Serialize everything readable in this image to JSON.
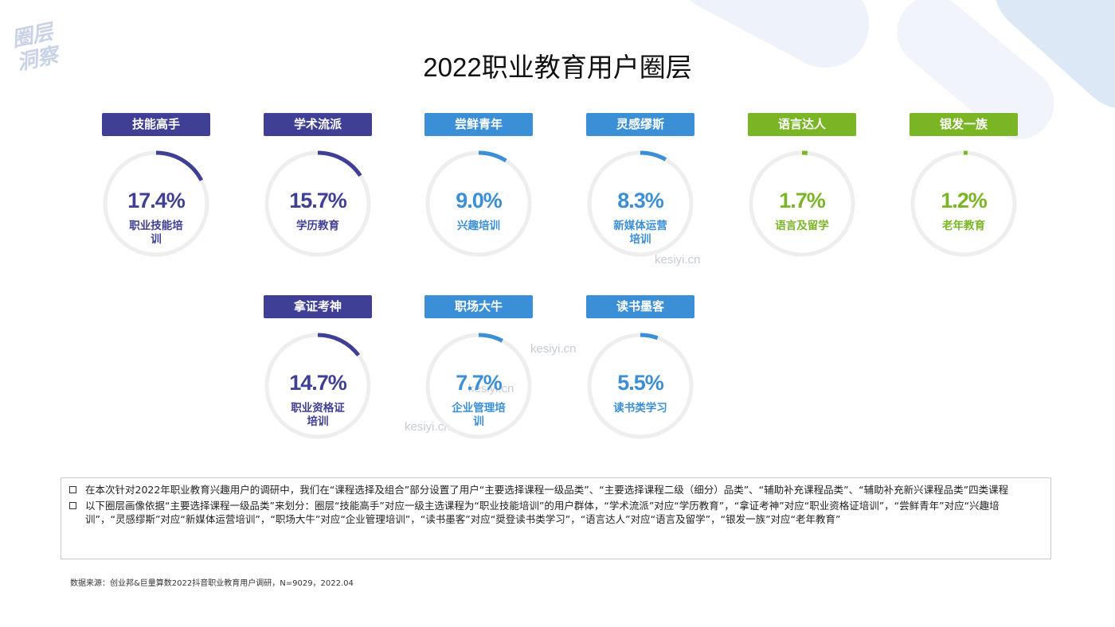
{
  "brand": {
    "logo_line1": "圈层",
    "logo_line2": "洞察"
  },
  "title": "2022职业教育用户圈层",
  "watermark": "kesiyi.cn",
  "colors": {
    "navy": "#3f3f95",
    "blue": "#3b8fd6",
    "green": "#7ab526",
    "ring_bg": "#eeeeee"
  },
  "chart_data": {
    "type": "pie",
    "unit": "%",
    "segments": [
      {
        "tag": "技能高手",
        "value": 17.4,
        "label": "17.4%",
        "sub": "职业技能培训",
        "color": "#3f3f95"
      },
      {
        "tag": "学术流派",
        "value": 15.7,
        "label": "15.7%",
        "sub": "学历教育",
        "color": "#3f3f95"
      },
      {
        "tag": "尝鲜青年",
        "value": 9.0,
        "label": "9.0%",
        "sub": "兴趣培训",
        "color": "#3b8fd6"
      },
      {
        "tag": "灵感缪斯",
        "value": 8.3,
        "label": "8.3%",
        "sub": "新媒体运营培训",
        "color": "#3b8fd6"
      },
      {
        "tag": "语言达人",
        "value": 1.7,
        "label": "1.7%",
        "sub": "语言及留学",
        "color": "#7ab526"
      },
      {
        "tag": "银发一族",
        "value": 1.2,
        "label": "1.2%",
        "sub": "老年教育",
        "color": "#7ab526"
      },
      {
        "tag": "拿证考神",
        "value": 14.7,
        "label": "14.7%",
        "sub": "职业资格证培训",
        "color": "#3f3f95"
      },
      {
        "tag": "职场大牛",
        "value": 7.7,
        "label": "7.7%",
        "sub": "企业管理培训",
        "color": "#3b8fd6"
      },
      {
        "tag": "读书墨客",
        "value": 5.5,
        "label": "5.5%",
        "sub": "读书类学习",
        "color": "#3b8fd6"
      }
    ]
  },
  "notes": [
    "在本次针对2022年职业教育兴趣用户的调研中，我们在“课程选择及组合”部分设置了用户“主要选择课程一级品类”、“主要选择课程二级（细分）品类”、“辅助补充课程品类”、“辅助补充新兴课程品类”四类课程",
    "以下圈层画像依据“主要选择课程一级品类”来划分：圈层“技能高手”对应一级主选课程为“职业技能培训”的用户群体，“学术流派”对应“学历教育”，“拿证考神”对应“职业资格证培训”，“尝鲜青年”对应“兴趣培训”，“灵感缪斯”对应“新媒体运营培训”，“职场大牛”对应“企业管理培训”，“读书墨客”对应“奨登读书类学习”，“语言达人”对应“语言及留学”，“银发一族”对应“老年教育”"
  ],
  "source": "数据来源：创业邦&巨量算数2022抖音职业教育用户调研，N=9029，2022.04"
}
